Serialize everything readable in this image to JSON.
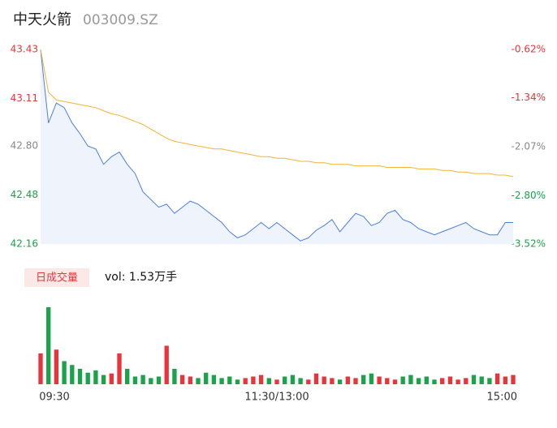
{
  "header": {
    "name": "中天火箭",
    "code": "003009.SZ"
  },
  "chart_data": [
    {
      "type": "line",
      "categories": [
        "09:30",
        null,
        null,
        null,
        null,
        null,
        null,
        null,
        null,
        null,
        null,
        null,
        null,
        null,
        null,
        null,
        null,
        null,
        null,
        null,
        null,
        null,
        null,
        null,
        null,
        null,
        null,
        null,
        null,
        null,
        "11:30/13:00",
        null,
        null,
        null,
        null,
        null,
        null,
        null,
        null,
        null,
        null,
        null,
        null,
        null,
        null,
        null,
        null,
        null,
        null,
        null,
        null,
        null,
        null,
        null,
        null,
        null,
        null,
        null,
        null,
        null,
        "15:00"
      ],
      "series": [
        {
          "name": "price",
          "color": "#4a7fe0",
          "values": [
            43.43,
            42.95,
            43.08,
            43.05,
            42.95,
            42.88,
            42.8,
            42.78,
            42.68,
            42.73,
            42.76,
            42.68,
            42.62,
            42.5,
            42.45,
            42.4,
            42.42,
            42.36,
            42.4,
            42.44,
            42.42,
            42.38,
            42.34,
            42.3,
            42.24,
            42.2,
            42.22,
            42.26,
            42.3,
            42.26,
            42.3,
            42.26,
            42.22,
            42.18,
            42.2,
            42.25,
            42.28,
            42.32,
            42.24,
            42.3,
            42.36,
            42.34,
            42.28,
            42.3,
            42.36,
            42.38,
            42.32,
            42.3,
            42.26,
            42.24,
            42.22,
            42.24,
            42.26,
            42.28,
            42.3,
            42.26,
            42.24,
            42.22,
            42.22,
            42.3,
            42.3
          ]
        },
        {
          "name": "average",
          "color": "#f5b335",
          "values": [
            43.43,
            43.15,
            43.1,
            43.09,
            43.08,
            43.07,
            43.06,
            43.05,
            43.03,
            43.01,
            43.0,
            42.98,
            42.96,
            42.94,
            42.91,
            42.88,
            42.85,
            42.83,
            42.82,
            42.81,
            42.8,
            42.79,
            42.78,
            42.78,
            42.77,
            42.76,
            42.75,
            42.74,
            42.73,
            42.73,
            42.72,
            42.72,
            42.71,
            42.7,
            42.7,
            42.69,
            42.69,
            42.68,
            42.68,
            42.68,
            42.67,
            42.67,
            42.67,
            42.67,
            42.66,
            42.66,
            42.66,
            42.66,
            42.65,
            42.65,
            42.65,
            42.64,
            42.64,
            42.63,
            42.63,
            42.62,
            42.62,
            42.62,
            42.61,
            42.61,
            42.6
          ]
        }
      ],
      "ylim": [
        42.16,
        43.43
      ],
      "yticks": [
        43.43,
        43.11,
        {
          "value": 42.8,
          "label": "42.80"
        },
        42.48,
        42.16
      ],
      "y2lim": [
        -3.52,
        -0.62
      ],
      "y2ticks": [
        {
          "value": -0.62,
          "label": "-0.62%"
        },
        {
          "value": -1.34,
          "label": "-1.34%"
        },
        {
          "value": -2.07,
          "label": "-2.07%"
        },
        {
          "value": -2.8,
          "label": "-2.80%"
        },
        {
          "value": -3.52,
          "label": "-3.52%"
        }
      ],
      "up_color": "#e8353b",
      "flat_color": "#888888",
      "down_color": "#1aa34a",
      "area_color": "#eef3fc"
    },
    {
      "type": "bar",
      "legend": "日成交量",
      "label": "vol: 1.53万手",
      "values": [
        40,
        100,
        45,
        30,
        25,
        20,
        15,
        18,
        12,
        14,
        40,
        20,
        10,
        12,
        8,
        10,
        50,
        20,
        12,
        10,
        8,
        15,
        12,
        8,
        10,
        6,
        8,
        10,
        12,
        8,
        6,
        10,
        12,
        8,
        6,
        14,
        10,
        8,
        6,
        10,
        8,
        12,
        14,
        10,
        8,
        6,
        10,
        12,
        8,
        10,
        6,
        8,
        10,
        6,
        8,
        12,
        10,
        8,
        14,
        10,
        12
      ],
      "ylim": [
        0,
        100
      ],
      "up_color": "#e8353b",
      "down_color": "#1aa34a",
      "legend_color": "#fde8e8"
    }
  ]
}
